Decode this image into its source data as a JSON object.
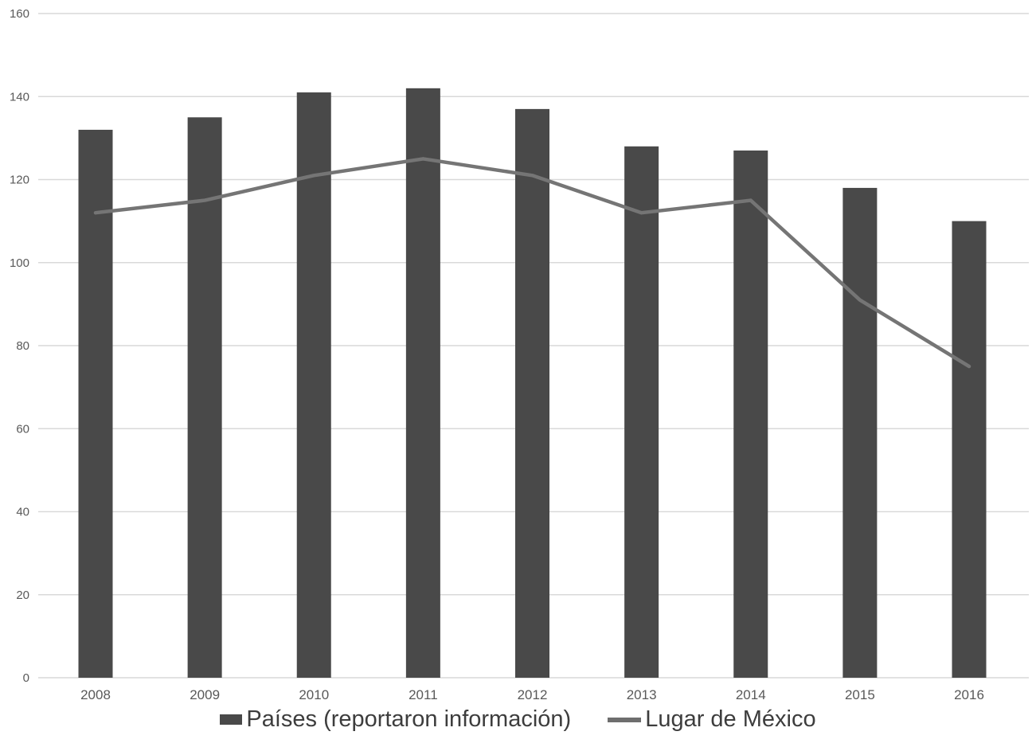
{
  "chart_data": {
    "type": "bar",
    "title": "",
    "xlabel": "",
    "ylabel": "",
    "categories": [
      "2008",
      "2009",
      "2010",
      "2011",
      "2012",
      "2013",
      "2014",
      "2015",
      "2016"
    ],
    "series": [
      {
        "name": "Países (reportaron información)",
        "type": "bar",
        "values": [
          132,
          135,
          141,
          142,
          137,
          128,
          127,
          118,
          110
        ]
      },
      {
        "name": "Lugar de México",
        "type": "line",
        "values": [
          112,
          115,
          121,
          125,
          121,
          112,
          115,
          91,
          75
        ]
      }
    ],
    "ylim": [
      0,
      160
    ],
    "ytick_step": 20,
    "yticks": [
      0,
      20,
      40,
      60,
      80,
      100,
      120,
      140,
      160
    ],
    "grid": true,
    "legend_position": "bottom"
  },
  "colors": {
    "bar": "#494949",
    "line": "#757575",
    "legend_line_swatch": "#6e6e6e",
    "grid": "#d9d9d9",
    "tick_text": "#595959",
    "legend_text": "#3d3d3d",
    "background": "#ffffff"
  }
}
